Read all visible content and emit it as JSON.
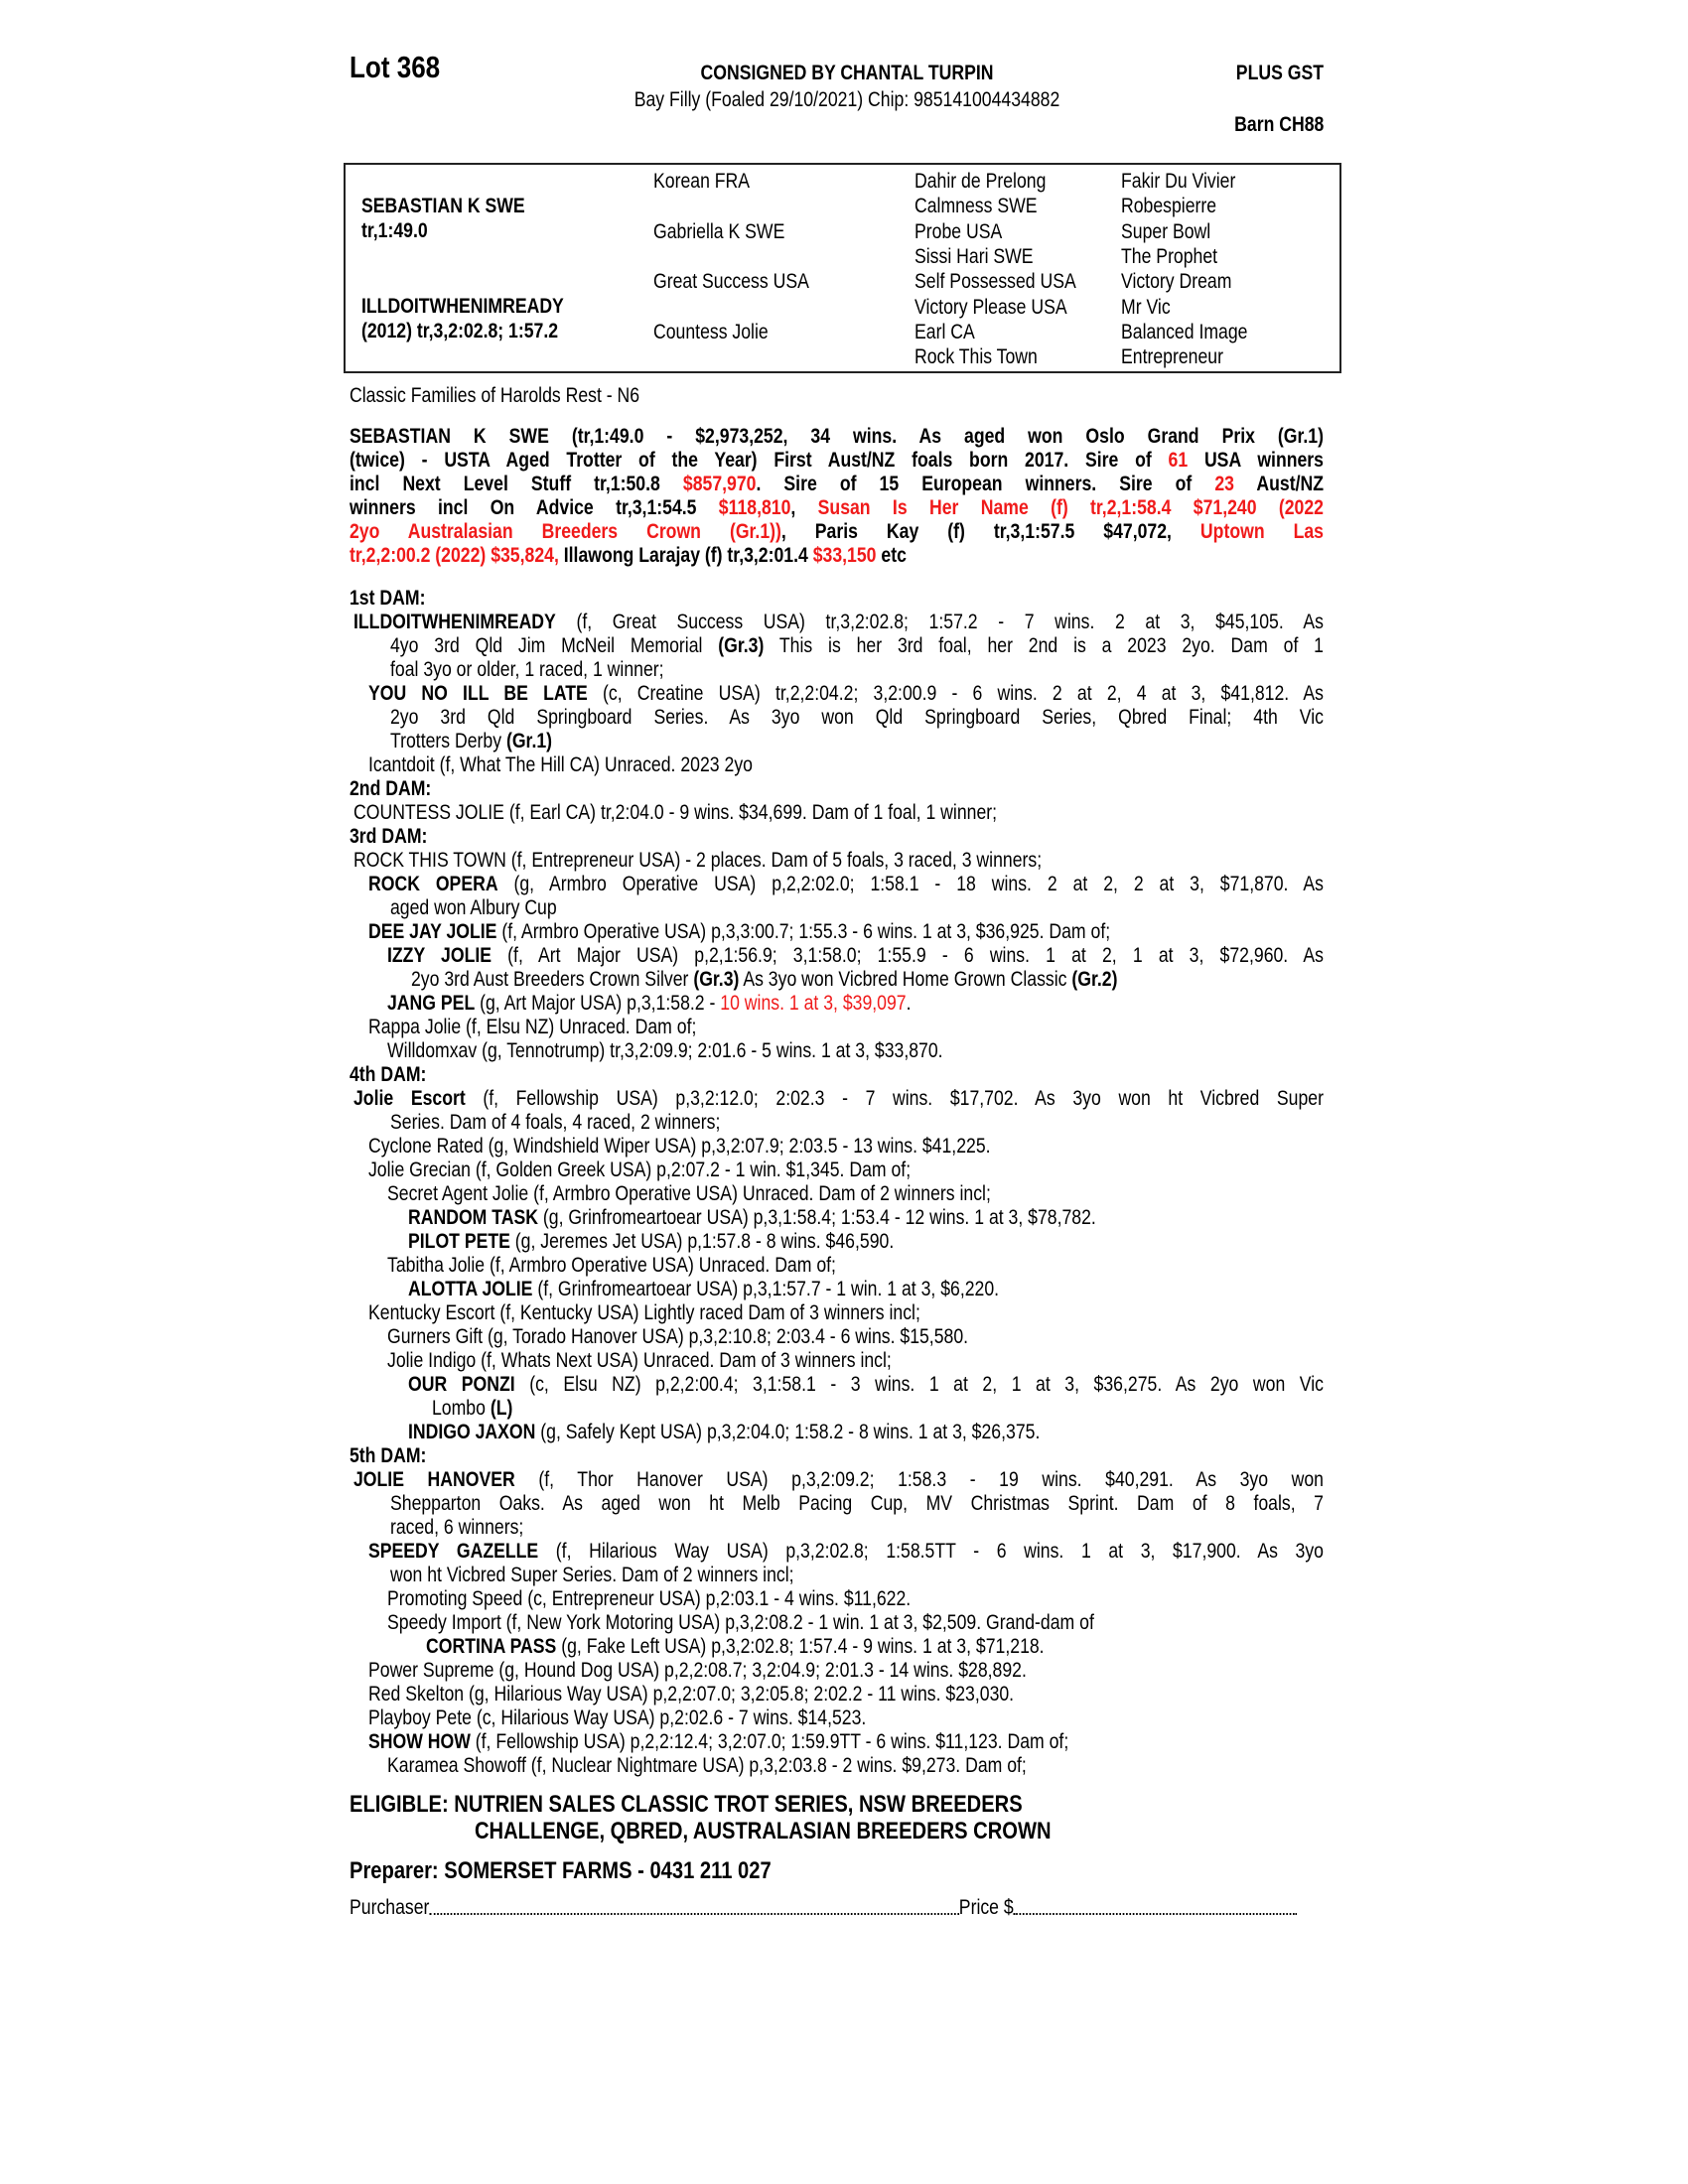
{
  "header": {
    "lot": "Lot 368",
    "consigned": "CONSIGNED BY CHANTAL TURPIN",
    "description": "Bay Filly (Foaled 29/10/2021) Chip: 985141004434882",
    "gst": "PLUS GST",
    "barn": "Barn CH88"
  },
  "pedigree": {
    "sire": {
      "name": "SEBASTIAN K SWE",
      "record": "tr,1:49.0"
    },
    "dam": {
      "name": "ILLDOITWHENIMREADY",
      "record": "(2012) tr,3,2:02.8; 1:57.2"
    },
    "gen2": [
      "Korean FRA",
      "Gabriella K SWE",
      "Great Success USA",
      "Countess Jolie"
    ],
    "gen3": [
      "Dahir de Prelong",
      "Calmness SWE",
      "Probe USA",
      "Sissi Hari SWE",
      "Self Possessed USA",
      "Victory Please USA",
      "Earl CA",
      "Rock This Town"
    ],
    "gen4": [
      "Fakir Du Vivier",
      "Robespierre",
      "Super Bowl",
      "The Prophet",
      "Victory Dream",
      "Mr Vic",
      "Balanced Image",
      "Entrepreneur"
    ]
  },
  "family": "Classic Families of Harolds Rest - N6",
  "sire_paragraph": [
    [
      [
        "SEBASTIAN K SWE (tr,1:49.0 - $2,973,252, 34 wins. As aged won Oslo Grand Prix (Gr.1)",
        "b"
      ]
    ],
    [
      [
        "(twice) - USTA Aged Trotter of the Year) First Aust/NZ foals born 2017. Sire of ",
        "b"
      ],
      [
        "61",
        "rb"
      ],
      [
        " USA winners",
        "b"
      ]
    ],
    [
      [
        "incl Next Level Stuff tr,1:50.8 ",
        "b"
      ],
      [
        "$857,970",
        "rb"
      ],
      [
        ". Sire of 15 European winners. Sire of ",
        "b"
      ],
      [
        "23",
        "rb"
      ],
      [
        " Aust/NZ",
        "b"
      ]
    ],
    [
      [
        "winners incl On Advice tr,3,1:54.5 ",
        "b"
      ],
      [
        "$118,810",
        "rb"
      ],
      [
        ", ",
        "b"
      ],
      [
        "Susan Is Her Name (f) tr,2,1:58.4 $71,240 (2022",
        "rb"
      ]
    ],
    [
      [
        "2yo Australasian Breeders Crown (Gr.1))",
        "rb"
      ],
      [
        ", Paris Kay (f) tr,3,1:57.5 $47,072, ",
        "b"
      ],
      [
        "Uptown Las",
        "rb"
      ]
    ],
    [
      [
        "tr,2,2:00.2 (2022) $35,824,",
        "rb"
      ],
      [
        " Illawong Larajay (f) tr,3,2:01.4 ",
        "b"
      ],
      [
        "$33,150",
        "rb"
      ],
      [
        " etc",
        "b"
      ]
    ]
  ],
  "dams": [
    {
      "heading": "1st DAM:",
      "entries": [
        {
          "level": 0,
          "lines": [
            [
              [
                "ILLDOITWHENIMREADY",
                "b"
              ],
              [
                " (f, Great Success USA) tr,3,2:02.8; 1:57.2 - 7 wins. 2 at 3, $45,105. As",
                ""
              ]
            ],
            [
              [
                "4yo 3rd Qld Jim McNeil Memorial ",
                ""
              ],
              [
                "(Gr.3)",
                "b"
              ],
              [
                " This is her 3rd foal, her 2nd is a 2023 2yo. Dam of 1",
                ""
              ]
            ],
            [
              [
                "foal 3yo or older, 1 raced, 1 winner;",
                ""
              ]
            ]
          ]
        },
        {
          "level": 1,
          "lines": [
            [
              [
                "YOU NO ILL BE LATE",
                "b"
              ],
              [
                " (c, Creatine USA) tr,2,2:04.2; 3,2:00.9 - 6 wins. 2 at 2, 4 at 3, $41,812. As",
                ""
              ]
            ],
            [
              [
                "2yo 3rd Qld Springboard Series. As 3yo won Qld Springboard Series, Qbred Final; 4th Vic",
                ""
              ]
            ],
            [
              [
                "Trotters Derby ",
                ""
              ],
              [
                "(Gr.1)",
                "b"
              ]
            ]
          ]
        },
        {
          "level": 1,
          "lines": [
            [
              [
                "Icantdoit (f, What The Hill CA) Unraced. 2023 2yo",
                ""
              ]
            ]
          ]
        }
      ]
    },
    {
      "heading": "2nd DAM:",
      "entries": [
        {
          "level": 0,
          "lines": [
            [
              [
                "COUNTESS JOLIE (f, Earl CA) tr,2:04.0 - 9 wins. $34,699. Dam of 1 foal, 1 winner;",
                ""
              ]
            ]
          ]
        }
      ]
    },
    {
      "heading": "3rd DAM:",
      "entries": [
        {
          "level": 0,
          "lines": [
            [
              [
                "ROCK THIS TOWN (f, Entrepreneur USA) - 2 places. Dam of 5 foals, 3 raced, 3 winners;",
                ""
              ]
            ]
          ]
        },
        {
          "level": 1,
          "lines": [
            [
              [
                "ROCK OPERA",
                "b"
              ],
              [
                " (g, Armbro Operative USA) p,2,2:02.0; 1:58.1 - 18 wins. 2 at 2, 2 at 3, $71,870. As",
                ""
              ]
            ],
            [
              [
                "aged won Albury Cup",
                ""
              ]
            ]
          ]
        },
        {
          "level": 1,
          "lines": [
            [
              [
                "DEE JAY JOLIE",
                "b"
              ],
              [
                " (f, Armbro Operative USA) p,3,3:00.7; 1:55.3 - 6 wins. 1 at 3, $36,925. Dam of;",
                ""
              ]
            ]
          ]
        },
        {
          "level": 2,
          "lines": [
            [
              [
                "IZZY JOLIE",
                "b"
              ],
              [
                " (f, Art Major USA) p,2,1:56.9; 3,1:58.0; 1:55.9 - 6 wins. 1 at 2, 1 at 3, $72,960. As",
                ""
              ]
            ],
            [
              [
                "2yo 3rd Aust Breeders Crown Silver ",
                ""
              ],
              [
                "(Gr.3)",
                "b"
              ],
              [
                " As 3yo won Vicbred Home Grown Classic ",
                ""
              ],
              [
                "(Gr.2)",
                "b"
              ]
            ]
          ]
        },
        {
          "level": 2,
          "lines": [
            [
              [
                "JANG PEL",
                "b"
              ],
              [
                " (g, Art Major USA) p,3,1:58.2 - ",
                ""
              ],
              [
                "10 wins. 1 at 3, $39,097",
                "r"
              ],
              [
                ".",
                ""
              ]
            ]
          ]
        },
        {
          "level": 1,
          "lines": [
            [
              [
                "Rappa Jolie (f, Elsu NZ) Unraced. Dam of;",
                ""
              ]
            ]
          ]
        },
        {
          "level": 2,
          "lines": [
            [
              [
                "Willdomxav (g, Tennotrump) tr,3,2:09.9; 2:01.6 - 5 wins. 1 at 3, $33,870.",
                ""
              ]
            ]
          ]
        }
      ]
    },
    {
      "heading": "4th DAM:",
      "entries": [
        {
          "level": 0,
          "lines": [
            [
              [
                "Jolie Escort",
                "b"
              ],
              [
                " (f, Fellowship USA) p,3,2:12.0; 2:02.3 - 7 wins. $17,702. As 3yo won ht Vicbred Super",
                ""
              ]
            ],
            [
              [
                "Series. Dam of 4 foals, 4 raced, 2 winners;",
                ""
              ]
            ]
          ]
        },
        {
          "level": 1,
          "lines": [
            [
              [
                "Cyclone Rated (g, Windshield Wiper USA) p,3,2:07.9; 2:03.5 - 13 wins. $41,225.",
                ""
              ]
            ]
          ]
        },
        {
          "level": 1,
          "lines": [
            [
              [
                "Jolie Grecian (f, Golden Greek USA) p,2:07.2 - 1 win. $1,345. Dam of;",
                ""
              ]
            ]
          ]
        },
        {
          "level": 2,
          "lines": [
            [
              [
                "Secret Agent Jolie (f, Armbro Operative USA) Unraced. Dam of 2 winners incl;",
                ""
              ]
            ]
          ]
        },
        {
          "level": 3,
          "lines": [
            [
              [
                "RANDOM TASK",
                "b"
              ],
              [
                " (g, Grinfromeartoear USA) p,3,1:58.4; 1:53.4 - 12 wins. 1 at 3, $78,782.",
                ""
              ]
            ]
          ]
        },
        {
          "level": 3,
          "lines": [
            [
              [
                "PILOT PETE",
                "b"
              ],
              [
                " (g, Jeremes Jet USA) p,1:57.8 - 8 wins. $46,590.",
                ""
              ]
            ]
          ]
        },
        {
          "level": 2,
          "lines": [
            [
              [
                "Tabitha Jolie (f, Armbro Operative USA) Unraced. Dam of;",
                ""
              ]
            ]
          ]
        },
        {
          "level": 3,
          "lines": [
            [
              [
                "ALOTTA JOLIE",
                "b"
              ],
              [
                " (f, Grinfromeartoear USA) p,3,1:57.7 - 1 win. 1 at 3, $6,220.",
                ""
              ]
            ]
          ]
        },
        {
          "level": 1,
          "lines": [
            [
              [
                "Kentucky Escort (f, Kentucky USA) Lightly raced Dam of 3 winners incl;",
                ""
              ]
            ]
          ]
        },
        {
          "level": 2,
          "lines": [
            [
              [
                "Gurners Gift (g, Torado Hanover USA) p,3,2:10.8; 2:03.4 - 6 wins. $15,580.",
                ""
              ]
            ]
          ]
        },
        {
          "level": 2,
          "lines": [
            [
              [
                "Jolie Indigo (f, Whats Next USA) Unraced. Dam of 3 winners incl;",
                ""
              ]
            ]
          ]
        },
        {
          "level": 3,
          "lines": [
            [
              [
                "OUR PONZI",
                "b"
              ],
              [
                " (c, Elsu NZ) p,2,2:00.4; 3,1:58.1 - 3 wins. 1 at 2, 1 at 3, $36,275. As 2yo won Vic",
                ""
              ]
            ],
            [
              [
                "Lombo ",
                ""
              ],
              [
                "(L)",
                "b"
              ]
            ]
          ]
        },
        {
          "level": 3,
          "lines": [
            [
              [
                "INDIGO JAXON",
                "b"
              ],
              [
                " (g, Safely Kept USA) p,3,2:04.0; 1:58.2 - 8 wins. 1 at 3, $26,375.",
                ""
              ]
            ]
          ]
        }
      ]
    },
    {
      "heading": "5th DAM:",
      "entries": [
        {
          "level": 0,
          "lines": [
            [
              [
                "JOLIE HANOVER",
                "b"
              ],
              [
                " (f, Thor Hanover USA) p,3,2:09.2; 1:58.3 - 19 wins. $40,291. As 3yo won",
                ""
              ]
            ],
            [
              [
                "Shepparton Oaks. As aged won ht Melb Pacing Cup, MV Christmas Sprint. Dam of 8 foals, 7",
                ""
              ]
            ],
            [
              [
                "raced, 6 winners;",
                ""
              ]
            ]
          ]
        },
        {
          "level": 1,
          "lines": [
            [
              [
                "SPEEDY GAZELLE",
                "b"
              ],
              [
                " (f, Hilarious Way USA) p,3,2:02.8; 1:58.5TT - 6 wins. 1 at 3, $17,900. As 3yo",
                ""
              ]
            ],
            [
              [
                "won ht Vicbred Super Series. Dam of 2 winners incl;",
                ""
              ]
            ]
          ]
        },
        {
          "level": 2,
          "lines": [
            [
              [
                "Promoting Speed (c, Entrepreneur USA) p,2:03.1 - 4 wins. $11,622.",
                ""
              ]
            ]
          ]
        },
        {
          "level": 2,
          "lines": [
            [
              [
                "Speedy Import (f, New York Motoring USA) p,3,2:08.2 - 1 win. 1 at 3, $2,509. Grand-dam of",
                ""
              ]
            ]
          ]
        },
        {
          "level": 4,
          "lines": [
            [
              [
                "CORTINA PASS",
                "b"
              ],
              [
                " (g, Fake Left USA) p,3,2:02.8; 1:57.4 - 9 wins. 1 at 3, $71,218.",
                ""
              ]
            ]
          ]
        },
        {
          "level": 1,
          "lines": [
            [
              [
                "Power Supreme (g, Hound Dog USA) p,2,2:08.7; 3,2:04.9; 2:01.3 - 14 wins. $28,892.",
                ""
              ]
            ]
          ]
        },
        {
          "level": 1,
          "lines": [
            [
              [
                "Red Skelton (g, Hilarious Way USA) p,2,2:07.0; 3,2:05.8; 2:02.2 - 11 wins. $23,030.",
                ""
              ]
            ]
          ]
        },
        {
          "level": 1,
          "lines": [
            [
              [
                "Playboy Pete (c, Hilarious Way USA) p,2:02.6 - 7 wins. $14,523.",
                ""
              ]
            ]
          ]
        },
        {
          "level": 1,
          "lines": [
            [
              [
                "SHOW HOW",
                "b"
              ],
              [
                " (f, Fellowship USA) p,2,2:12.4; 3,2:07.0; 1:59.9TT - 6 wins. $11,123. Dam of;",
                ""
              ]
            ]
          ]
        },
        {
          "level": 2,
          "lines": [
            [
              [
                "Karamea Showoff (f, Nuclear Nightmare USA) p,3,2:03.8 - 2 wins. $9,273. Dam of;",
                ""
              ]
            ]
          ]
        }
      ]
    }
  ],
  "eligible": {
    "line1": "ELIGIBLE: NUTRIEN SALES CLASSIC TROT SERIES, NSW BREEDERS",
    "line2": "CHALLENGE, QBRED, AUSTRALASIAN BREEDERS CROWN"
  },
  "preparer": "Preparer: SOMERSET FARMS - 0431 211 027",
  "purchase": {
    "purchaser_label": "Purchaser",
    "price_label": "Price $"
  },
  "colors": {
    "highlight": "#f01a1a",
    "text": "#000000"
  }
}
